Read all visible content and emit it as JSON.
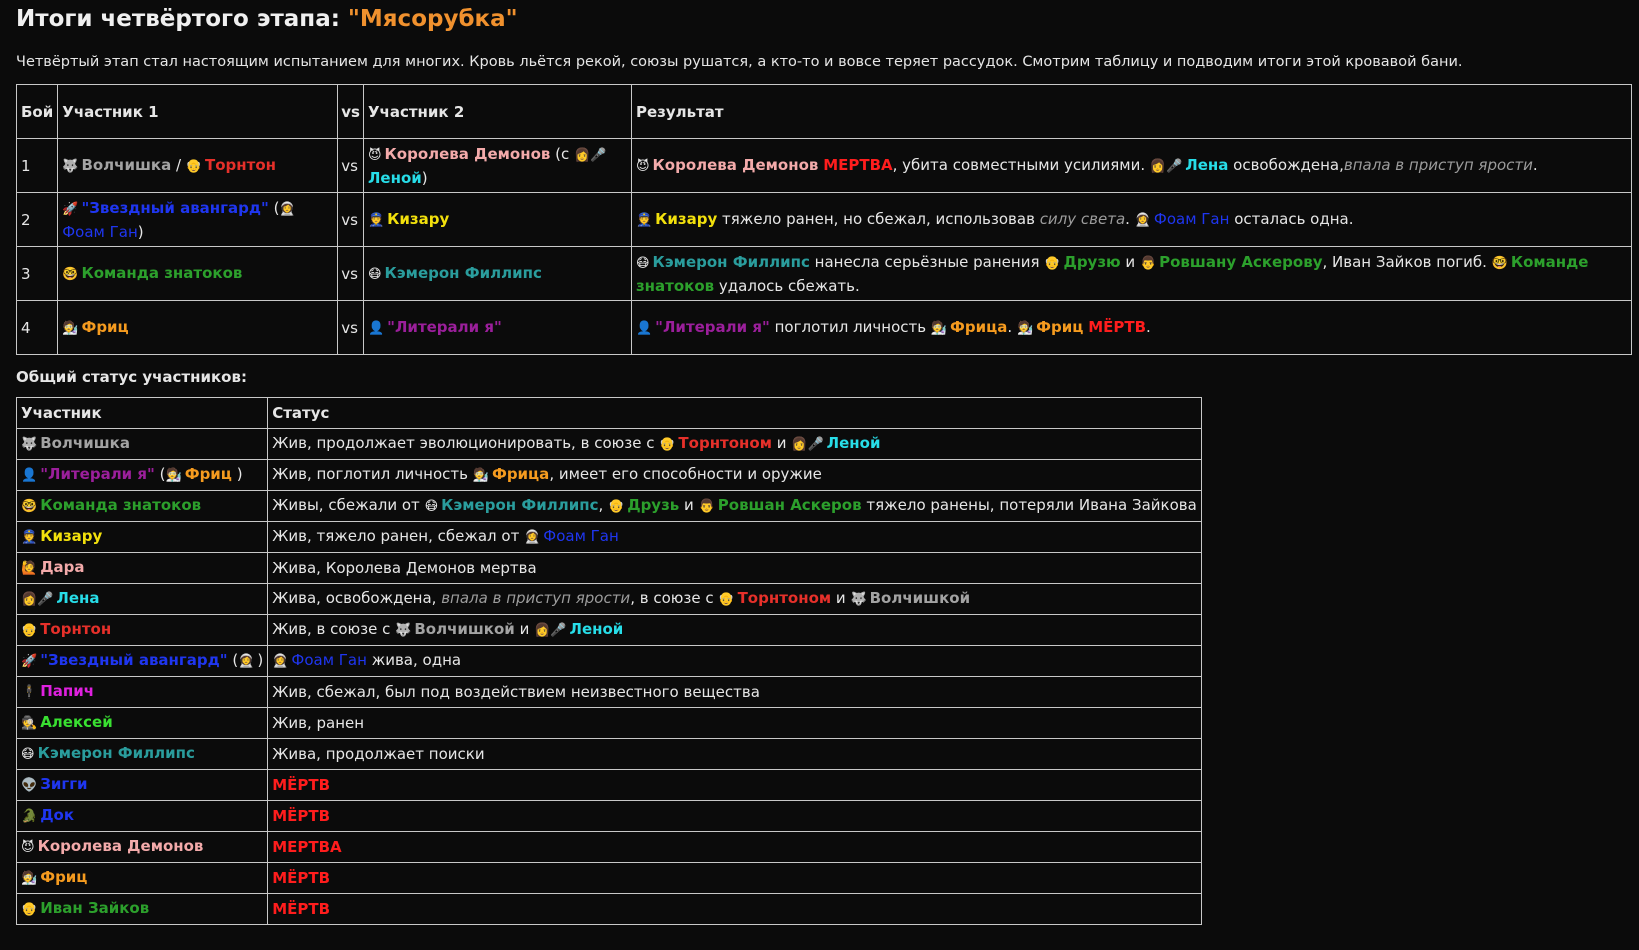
{
  "header": {
    "title_prefix": "Итоги четвёртого этапа: ",
    "title_quote": "\"Мясорубка\"",
    "intro": "Четвёртый этап стал настоящим испытанием для многих. Кровь льётся рекой, союзы рушатся, а кто-то и вовсе теряет рассудок. Смотрим таблицу и подводим итоги этой кровавой бани."
  },
  "fights": {
    "headers": {
      "fight": "Бой",
      "p1": "Участник 1",
      "vs": "vs",
      "p2": "Участник 2",
      "result": "Результат"
    },
    "rows": [
      {
        "num": "1",
        "p1_a_icon": "🐺",
        "p1_a": "Волчишка",
        "p1_sep": " / ",
        "p1_b_icon": "👴",
        "p1_b": "Торнтон",
        "p2_icon": "😈",
        "p2": "Королева Демонов",
        "p2_note_open": " (с ",
        "p2_note_icon": "👩🎤",
        "p2_note_name": "Леной",
        "p2_note_close": ")",
        "r_icon": "😈",
        "r_name": "Королева Демонов",
        "r_dead": "МЕРТВА",
        "r_t1": ", убита совместными усилиями. ",
        "r_lena_icon": "👩🎤",
        "r_lena": "Лена",
        "r_t2": " освобождена,",
        "r_italic": "впала в приступ ярости",
        "r_t3": "."
      },
      {
        "num": "2",
        "p1_icon": "🚀",
        "p1": "\"Звездный авангард\"",
        "p1_open": " (",
        "p1_sub_icon": "👩‍🚀",
        "p1_sub": "Фоам Ган",
        "p1_close": ")",
        "p2_icon": "👮",
        "p2": "Кизару",
        "r_icon": "👮",
        "r_name": "Кизару",
        "r_t1": " тяжело ранен, но сбежал, использовав ",
        "r_italic": "силу света",
        "r_t2": ". ",
        "r_foam_icon": "👩‍🚀",
        "r_foam": "Фоам Ган",
        "r_t3": " осталась одна."
      },
      {
        "num": "3",
        "p1_icon": "🤓",
        "p1": "Команда знатоков",
        "p2_icon": "😷",
        "p2": "Кэмерон Филлипс",
        "r_icon": "😷",
        "r_name": "Кэмерон Филлипс",
        "r_t1": " нанесла серьёзные ранения ",
        "r_druz_icon": "👴",
        "r_druz": "Друзю",
        "r_and": " и ",
        "r_rov_icon": "👨",
        "r_rov": "Ровшану Аскерову",
        "r_t2": ", Иван Зайков погиб. ",
        "r_team_icon": "🤓",
        "r_team": "Команде знатоков",
        "r_t3": " удалось сбежать."
      },
      {
        "num": "4",
        "p1_icon": "🧑‍🔬",
        "p1": "Фриц",
        "p2_icon": "👤",
        "p2": "\"Литерали я\"",
        "r_icon": "👤",
        "r_name": "\"Литерали я\"",
        "r_t1": " поглотил личность ",
        "r_fritz_icon": "🧑‍🔬",
        "r_fritz": "Фрица",
        "r_t2": ". ",
        "r_fritz2_icon": "🧑‍🔬",
        "r_fritz2": "Фриц",
        "r_t3": " ",
        "r_dead": "МЁРТВ",
        "r_t4": "."
      }
    ]
  },
  "status": {
    "heading": "Общий статус участников:",
    "headers": {
      "member": "Участник",
      "status": "Статус"
    },
    "rows": [
      {
        "icon": "🐺",
        "name": "Волчишка",
        "s1": "Жив, продолжает эволюционировать, в союзе с ",
        "s_a_icon": "👴",
        "s_a": "Торнтоном",
        "s_and": " и ",
        "s_b_icon": "👩🎤",
        "s_b": "Леной"
      },
      {
        "icon": "👤",
        "name": "\"Литерали я\"",
        "open": " (",
        "sub_icon": "🧑‍🔬",
        "sub": "Фриц",
        "close": " )",
        "s1": "Жив, поглотил личность ",
        "s_a_icon": "🧑‍🔬",
        "s_a": "Фрица",
        "s2": ", имеет его способности и оружие"
      },
      {
        "icon": "🤓",
        "name": "Команда знатоков",
        "s1": "Живы, сбежали от ",
        "s_a_icon": "😷",
        "s_a": "Кэмерон Филлипс",
        "s2": ", ",
        "s_b_icon": "👴",
        "s_b": "Друзь",
        "s_and": " и ",
        "s_c_icon": "👨",
        "s_c": "Ровшан Аскеров",
        "s3": " тяжело ранены, потеряли Ивана Зайкова"
      },
      {
        "icon": "👮",
        "name": "Кизару",
        "s1": "Жив, тяжело ранен, сбежал от ",
        "s_a_icon": "👩‍🚀",
        "s_a": "Фоам Ган"
      },
      {
        "icon": "🙋",
        "name": "Дара",
        "s1": "Жива, Королева Демонов мертва"
      },
      {
        "icon": "👩🎤",
        "name": "Лена",
        "s1": "Жива, освобождена, ",
        "s_italic": "впала в приступ ярости",
        "s2": ", в союзе с ",
        "s_a_icon": "👴",
        "s_a": "Торнтоном",
        "s_and": " и ",
        "s_b_icon": "🐺",
        "s_b": "Волчишкой"
      },
      {
        "icon": "👴",
        "name": "Торнтон",
        "s1": "Жив, в союзе с ",
        "s_a_icon": "🐺",
        "s_a": "Волчишкой",
        "s_and": " и ",
        "s_b_icon": "👩🎤",
        "s_b": "Леной"
      },
      {
        "icon": "🚀",
        "name": "\"Звездный авангард\"",
        "open": " (",
        "sub_icon": "👩‍🚀",
        "close": ")",
        "s_a_icon": "👩‍🚀",
        "s_a": "Фоам Ган",
        "s1": " жива, одна"
      },
      {
        "icon": "🕴",
        "name": "Папич",
        "s1": "Жив, сбежал, был под воздействием неизвестного вещества"
      },
      {
        "icon": "🕵",
        "name": "Алексей",
        "s1": "Жив, ранен"
      },
      {
        "icon": "😷",
        "name": "Кэмерон Филлипс",
        "s1": "Жива, продолжает поиски"
      },
      {
        "icon": "👽",
        "name": "Зигги",
        "dead": "МЁРТВ"
      },
      {
        "icon": "🐊",
        "name": "Док",
        "dead": "МЁРТВ"
      },
      {
        "icon": "😈",
        "name": "Королева Демонов",
        "dead": "МЕРТВА"
      },
      {
        "icon": "🧑‍🔬",
        "name": "Фриц",
        "dead": "МЁРТВ"
      },
      {
        "icon": "👴",
        "name": "Иван Зайков",
        "dead": "МЁРТВ"
      }
    ]
  },
  "colors": {
    "background": "#0b0b0b",
    "text": "#e6e6e6",
    "title_accent": "#f0912e",
    "dead": "#ff1d1d",
    "lena": "#27dde8",
    "foam": "#1f36f0",
    "kizaru": "#f2e00c"
  }
}
